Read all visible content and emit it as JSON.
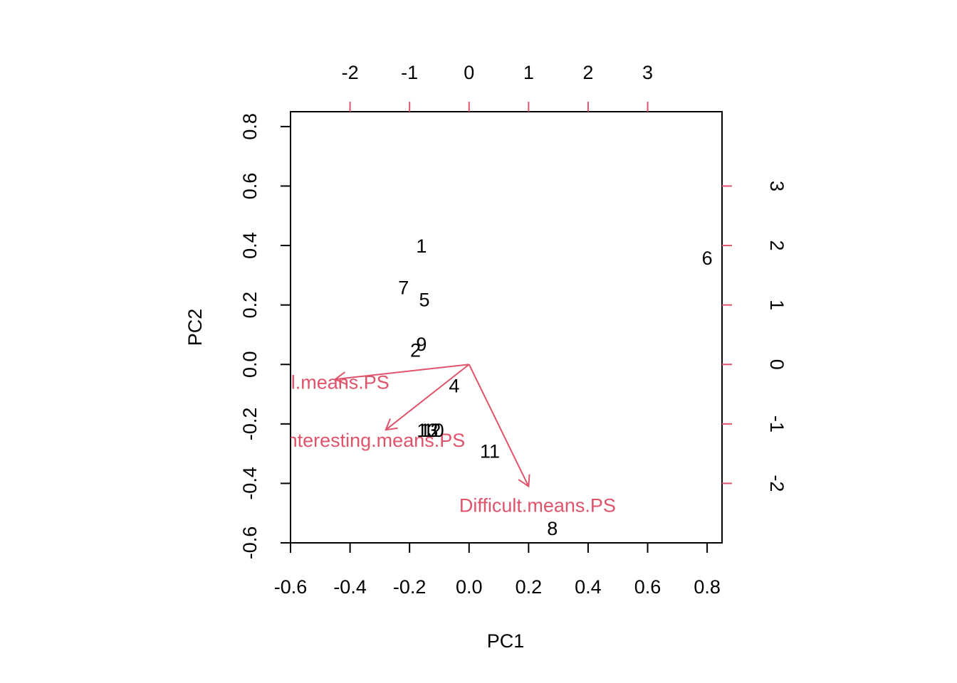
{
  "colors": {
    "primary": "#000000",
    "secondary": "#DF536B",
    "background": "#ffffff"
  },
  "chart_data": {
    "type": "scatter",
    "subtype": "biplot",
    "title": "",
    "xlabel": "PC1",
    "ylabel": "PC2",
    "xlim": [
      -0.6,
      0.85
    ],
    "ylim": [
      -0.6,
      0.85
    ],
    "x_ticks": [
      -0.6,
      -0.4,
      -0.2,
      0.0,
      0.2,
      0.4,
      0.6,
      0.8
    ],
    "x_tick_labels": [
      "-0.6",
      "-0.4",
      "-0.2",
      "0.0",
      "0.2",
      "0.4",
      "0.6",
      "0.8"
    ],
    "y_ticks": [
      -0.6,
      -0.4,
      -0.2,
      0.0,
      0.2,
      0.4,
      0.6,
      0.8
    ],
    "y_tick_labels": [
      "-0.6",
      "-0.4",
      "-0.2",
      "0.0",
      "0.2",
      "0.4",
      "0.6",
      "0.8"
    ],
    "secondary_x_ticks": [
      -2,
      -1,
      0,
      1,
      2,
      3
    ],
    "secondary_x_tick_labels": [
      "-2",
      "-1",
      "0",
      "1",
      "2",
      "3"
    ],
    "secondary_y_ticks": [
      -2,
      -1,
      0,
      1,
      2,
      3
    ],
    "secondary_y_tick_labels": [
      "-2",
      "-1",
      "0",
      "1",
      "2",
      "3"
    ],
    "secondary_scale_factor": 0.2,
    "grid": false,
    "observations": [
      {
        "label": "1",
        "x": -0.16,
        "y": 0.4
      },
      {
        "label": "7",
        "x": -0.22,
        "y": 0.26
      },
      {
        "label": "5",
        "x": -0.15,
        "y": 0.22
      },
      {
        "label": "9",
        "x": -0.16,
        "y": 0.07
      },
      {
        "label": "2",
        "x": -0.18,
        "y": 0.05
      },
      {
        "label": "4",
        "x": -0.05,
        "y": -0.07
      },
      {
        "label": "13",
        "x": -0.14,
        "y": -0.22
      },
      {
        "label": "10",
        "x": -0.12,
        "y": -0.22
      },
      {
        "label": "11",
        "x": 0.07,
        "y": -0.29
      },
      {
        "label": "6",
        "x": 0.8,
        "y": 0.36
      },
      {
        "label": "8",
        "x": 0.28,
        "y": -0.55
      },
      {
        "label": "12",
        "x": -0.13,
        "y": -0.22
      }
    ],
    "variables": [
      {
        "label": "Useful.means.PS",
        "x": -0.45,
        "y": -0.05
      },
      {
        "label": "Interesting.means.PS",
        "x": -0.28,
        "y": -0.22
      },
      {
        "label": "Difficult.means.PS",
        "x": 0.2,
        "y": -0.41
      }
    ]
  }
}
